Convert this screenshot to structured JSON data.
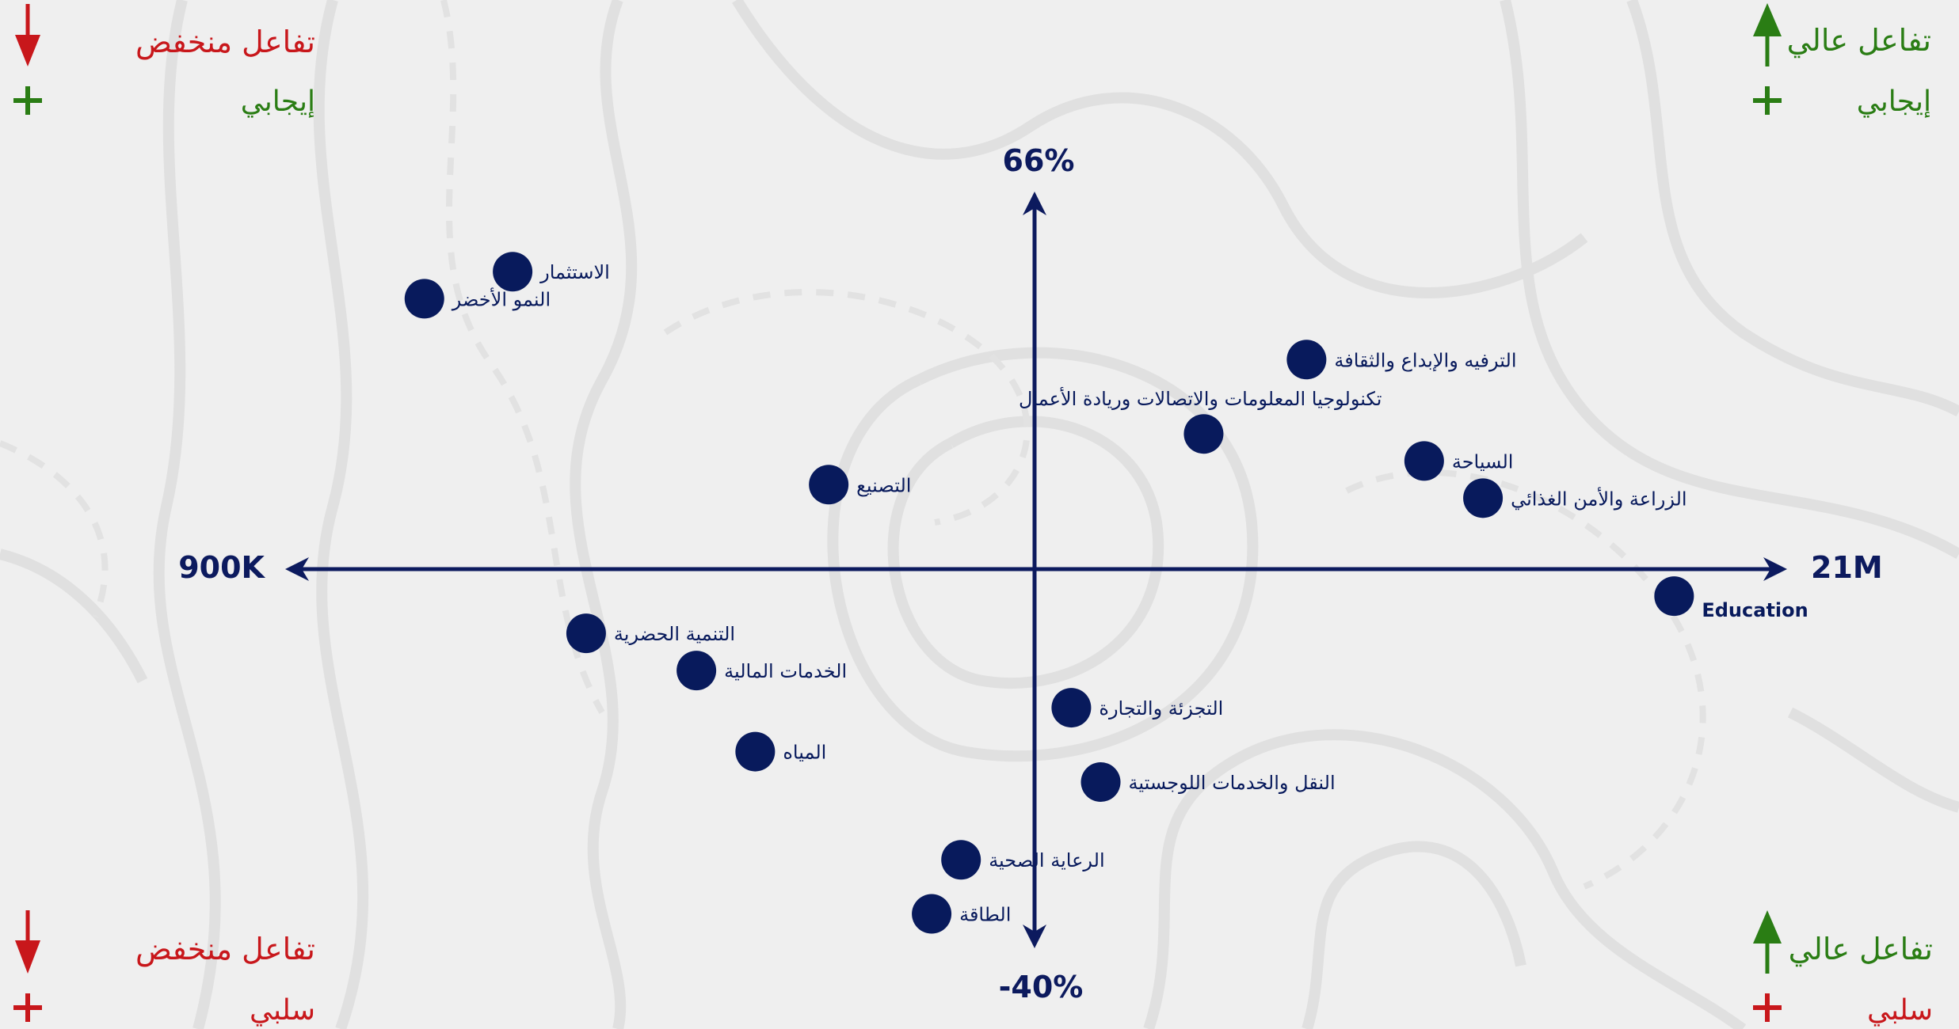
{
  "colors": {
    "background": "#efefef",
    "navy": "#0c1a5e",
    "point": "#081a5c",
    "green": "#2a7d14",
    "red": "#c8171b",
    "contour": "#dddddd"
  },
  "corners": {
    "top_left": {
      "title": "تفاعل منخفض",
      "sentiment": "إيجابي",
      "arrow": "down-arrow-icon",
      "sign": "plus-icon"
    },
    "top_right": {
      "title": "تفاعل عالي",
      "sentiment": "إيجابي",
      "arrow": "up-arrow-icon",
      "sign": "plus-icon"
    },
    "bottom_left": {
      "title": "تفاعل منخفض",
      "sentiment": "سلبي",
      "arrow": "down-arrow-icon",
      "sign": "plus-icon"
    },
    "bottom_right": {
      "title": "تفاعل عالي",
      "sentiment": "سلبي",
      "arrow": "up-arrow-icon",
      "sign": "plus-icon"
    }
  },
  "chart_data": {
    "type": "scatter",
    "axes": {
      "x_min_label": "900K",
      "x_max_label": "21M",
      "y_max_label": "66%",
      "y_min_label": "-40%"
    },
    "points": [
      {
        "label": "الاستثمار",
        "x": -0.71,
        "y": 0.88
      },
      {
        "label": "النمو الأخضر",
        "x": -0.83,
        "y": 0.8
      },
      {
        "label": "الترفيه والإبداع والثقافة",
        "x": 0.37,
        "y": 0.62
      },
      {
        "label": "تكنولوجيا المعلومات والاتصالات وريادة الأعمال",
        "x": 0.23,
        "y": 0.4
      },
      {
        "label": "السياحة",
        "x": 0.53,
        "y": 0.32
      },
      {
        "label": "التصنيع",
        "x": -0.28,
        "y": 0.25
      },
      {
        "label": "الزراعة والأمن الغذائي",
        "x": 0.61,
        "y": 0.21
      },
      {
        "label": "Education",
        "x": 0.87,
        "y": -0.08
      },
      {
        "label": "التنمية الحضرية",
        "x": -0.61,
        "y": -0.19
      },
      {
        "label": "الخدمات المالية",
        "x": -0.46,
        "y": -0.3
      },
      {
        "label": "التجزئة والتجارة",
        "x": 0.05,
        "y": -0.41
      },
      {
        "label": "المياه",
        "x": -0.38,
        "y": -0.54
      },
      {
        "label": "النقل والخدمات اللوجستية",
        "x": 0.09,
        "y": -0.63
      },
      {
        "label": "الرعاية الصحية",
        "x": -0.1,
        "y": -0.86
      },
      {
        "label": "الطاقة",
        "x": -0.14,
        "y": -1.02
      }
    ]
  }
}
